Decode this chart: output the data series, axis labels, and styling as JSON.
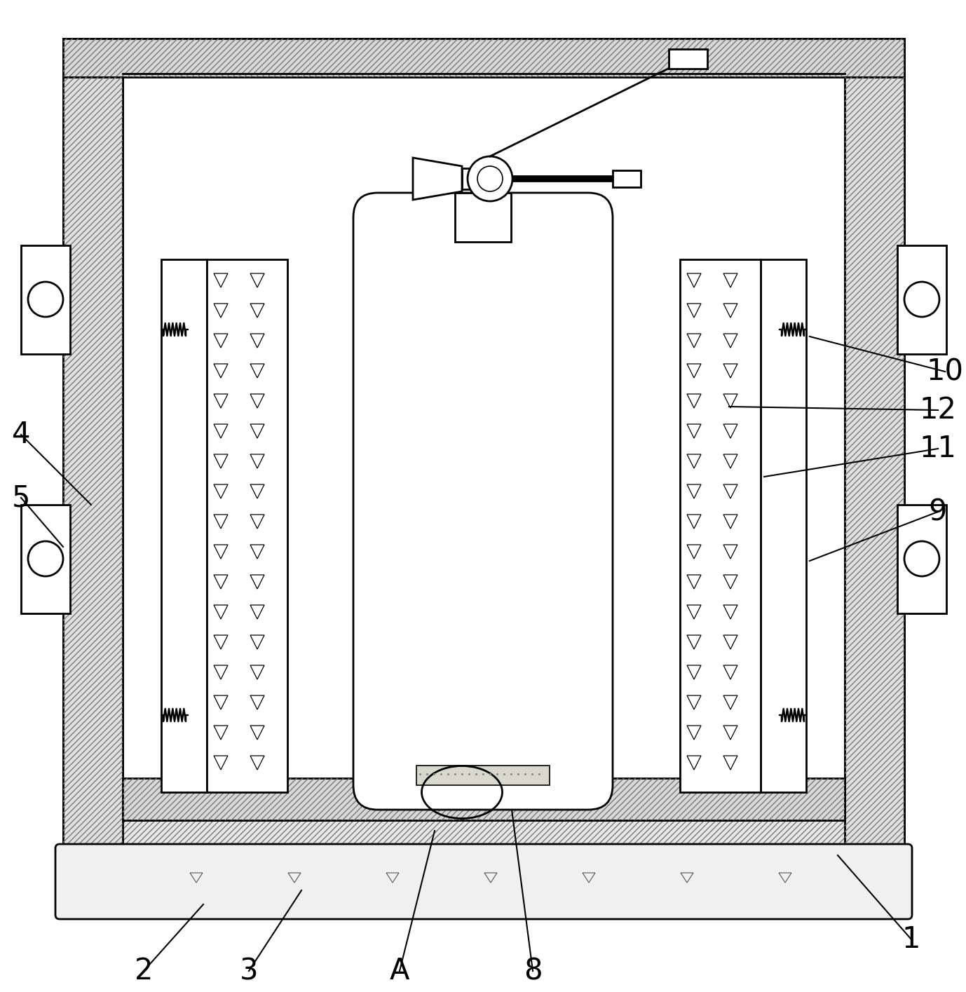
{
  "bg_color": "#ffffff",
  "line_color": "#000000",
  "label_color": "#000000",
  "hatch_color": "#777777",
  "figsize": [
    13.78,
    14.15
  ],
  "dpi": 100,
  "wall_hatch": "////",
  "pad_hatch_color": "#aaaaaa",
  "lw_main": 2.0,
  "lw_thin": 1.2,
  "font_size": 30
}
